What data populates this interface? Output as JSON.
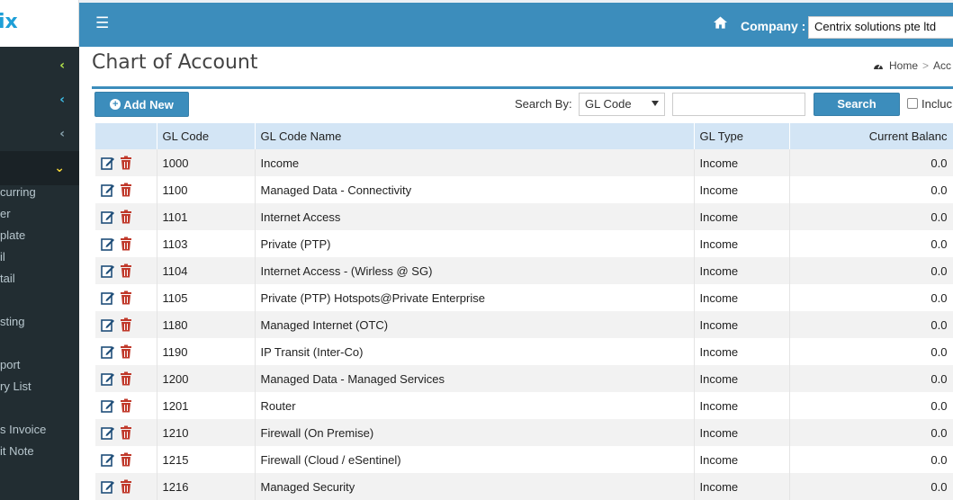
{
  "app": {
    "logo_text": "ix"
  },
  "sidebar": {
    "submenu_items": [
      "curring",
      "er",
      "plate",
      "il",
      "tail",
      "sting",
      "port",
      "ry List",
      "s Invoice",
      "it Note"
    ]
  },
  "topbar": {
    "company_label": "Company :",
    "company_value": "Centrix solutions pte ltd"
  },
  "page": {
    "title": "Chart of Account",
    "breadcrumb": {
      "home": "Home",
      "separator": ">",
      "current": "Acc"
    }
  },
  "toolbar": {
    "add_new_label": "Add New",
    "search_by_label": "Search By:",
    "search_by_value": "GL Code",
    "search_value": "",
    "search_button_label": "Search",
    "include_label": "Incluc"
  },
  "table": {
    "headers": {
      "gl_code": "GL Code",
      "gl_code_name": "GL Code Name",
      "gl_type": "GL Type",
      "balance": "Current Balanc"
    },
    "rows": [
      {
        "code": "1000",
        "name": "Income",
        "type": "Income",
        "balance": "0.0"
      },
      {
        "code": "1100",
        "name": "Managed Data - Connectivity",
        "type": "Income",
        "balance": "0.0"
      },
      {
        "code": "1101",
        "name": "Internet Access",
        "type": "Income",
        "balance": "0.0"
      },
      {
        "code": "1103",
        "name": "Private (PTP)",
        "type": "Income",
        "balance": "0.0"
      },
      {
        "code": "1104",
        "name": "Internet Access - (Wirless @ SG)",
        "type": "Income",
        "balance": "0.0"
      },
      {
        "code": "1105",
        "name": "Private (PTP) Hotspots@Private Enterprise",
        "type": "Income",
        "balance": "0.0"
      },
      {
        "code": "1180",
        "name": "Managed Internet (OTC)",
        "type": "Income",
        "balance": "0.0"
      },
      {
        "code": "1190",
        "name": "IP Transit (Inter-Co)",
        "type": "Income",
        "balance": "0.0"
      },
      {
        "code": "1200",
        "name": "Managed Data - Managed Services",
        "type": "Income",
        "balance": "0.0"
      },
      {
        "code": "1201",
        "name": "Router",
        "type": "Income",
        "balance": "0.0"
      },
      {
        "code": "1210",
        "name": "Firewall (On Premise)",
        "type": "Income",
        "balance": "0.0"
      },
      {
        "code": "1215",
        "name": "Firewall (Cloud / eSentinel)",
        "type": "Income",
        "balance": "0.0"
      },
      {
        "code": "1216",
        "name": "Managed Security",
        "type": "Income",
        "balance": "0.0"
      }
    ]
  },
  "colors": {
    "accent": "#3c8dbc",
    "sidebar": "#222d32",
    "header_row": "#d3e5f5",
    "delete": "#c0392b"
  }
}
